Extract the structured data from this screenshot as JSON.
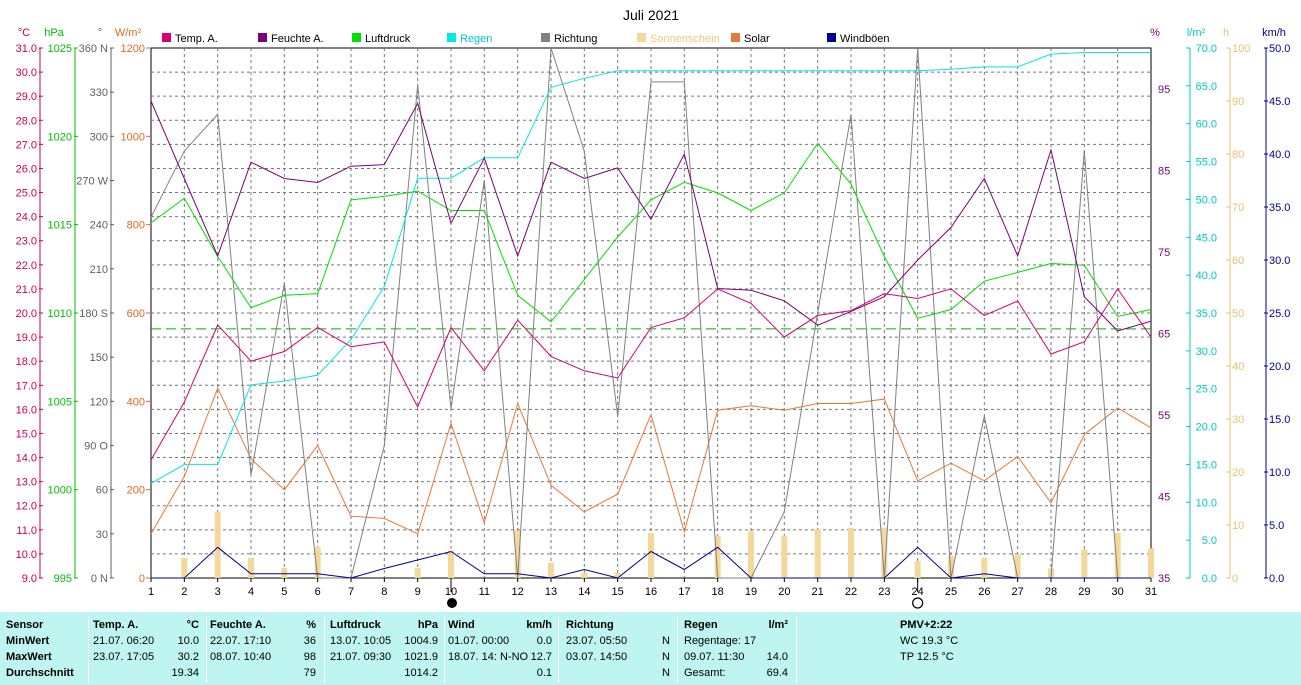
{
  "chart_data": {
    "type": "line",
    "title": "Juli 2021",
    "x": [
      1,
      2,
      3,
      4,
      5,
      6,
      7,
      8,
      9,
      10,
      11,
      12,
      13,
      14,
      15,
      16,
      17,
      18,
      19,
      20,
      21,
      22,
      23,
      24,
      25,
      26,
      27,
      28,
      29,
      30,
      31
    ],
    "axes": {
      "temp": {
        "unit": "°C",
        "min": 9,
        "max": 31,
        "ticks": [
          "31.0",
          "30.0",
          "29.0",
          "28.0",
          "27.0",
          "26.0",
          "25.0",
          "24.0",
          "23.0",
          "22.0",
          "21.0",
          "20.0",
          "19.0",
          "18.0",
          "17.0",
          "16.0",
          "15.0",
          "14.0",
          "13.0",
          "12.0",
          "11.0",
          "10.0",
          "9.0"
        ]
      },
      "pressure": {
        "unit": "hPa",
        "min": 995,
        "max": 1025,
        "ticks": [
          "1025",
          "1020",
          "1015",
          "1010",
          "1005",
          "1000",
          "995"
        ]
      },
      "direction": {
        "unit": "°",
        "min": 0,
        "max": 360,
        "ticks": [
          "360 N",
          "330",
          "300",
          "270 W",
          "240",
          "210",
          "180 S",
          "150",
          "120",
          "90 O",
          "60",
          "30",
          "0 N"
        ]
      },
      "solar": {
        "unit": "W/m²",
        "min": 0,
        "max": 1200,
        "ticks": [
          "1200",
          "1000",
          "800",
          "600",
          "400",
          "200",
          "0"
        ]
      },
      "humidity": {
        "unit": "%",
        "min": 35,
        "max": 100,
        "ticks": [
          "95",
          "85",
          "75",
          "65",
          "55",
          "45",
          "35"
        ]
      },
      "rain": {
        "unit": "l/m²",
        "min": 0,
        "max": 70,
        "ticks": [
          "70.0",
          "65.0",
          "60.0",
          "55.0",
          "50.0",
          "45.0",
          "40.0",
          "35.0",
          "30.0",
          "25.0",
          "20.0",
          "15.0",
          "10.0",
          "5.0",
          "0.0"
        ]
      },
      "sunshine": {
        "unit": "h",
        "min": 0,
        "max": 100,
        "ticks": [
          "100",
          "90",
          "80",
          "70",
          "60",
          "50",
          "40",
          "30",
          "20",
          "10",
          "0"
        ]
      },
      "wind": {
        "unit": "km/h",
        "min": 0,
        "max": 50,
        "ticks": [
          "50.0",
          "45.0",
          "40.0",
          "35.0",
          "30.0",
          "25.0",
          "20.0",
          "15.0",
          "10.0",
          "5.0",
          "0.0"
        ]
      }
    },
    "series": [
      {
        "name": "Temp. A.",
        "color": "#d6006f",
        "axis": "temp",
        "values": [
          13.9,
          16.3,
          19.5,
          18.0,
          18.4,
          19.4,
          18.6,
          18.8,
          16.1,
          19.4,
          17.6,
          19.7,
          18.2,
          17.6,
          17.3,
          19.4,
          19.8,
          21.0,
          20.4,
          19.0,
          19.9,
          20.1,
          20.8,
          20.6,
          21.0,
          19.9,
          20.5,
          18.3,
          18.8,
          21.0,
          19.0
        ]
      },
      {
        "name": "Feuchte A.",
        "color": "#7b007b",
        "axis": "humidity",
        "values": [
          93.5,
          84.0,
          74.5,
          86.0,
          84.0,
          83.5,
          85.5,
          85.7,
          93.2,
          78.5,
          86.5,
          74.5,
          86.0,
          84.0,
          85.3,
          79.0,
          87.0,
          70.5,
          70.3,
          69.0,
          66.0,
          67.7,
          69.5,
          74.0,
          78.0,
          84.0,
          74.5,
          87.5,
          69.5,
          65.3,
          66.5
        ]
      },
      {
        "name": "Luftdruck",
        "color": "#00e000",
        "axis": "pressure",
        "values": [
          1015.1,
          1016.5,
          1013.2,
          1010.3,
          1011.0,
          1011.1,
          1016.4,
          1016.6,
          1016.9,
          1015.8,
          1015.8,
          1011.0,
          1009.5,
          1011.9,
          1014.3,
          1016.4,
          1017.4,
          1016.8,
          1015.8,
          1016.8,
          1019.6,
          1017.3,
          1013.2,
          1009.7,
          1010.2,
          1011.8,
          1012.3,
          1012.8,
          1012.7,
          1009.8,
          1010.2
        ]
      },
      {
        "name": "Regen",
        "color": "#00e8e8",
        "axis": "rain",
        "values": [
          12.5,
          15.0,
          15.0,
          25.5,
          26.0,
          26.8,
          31.5,
          38.5,
          52.8,
          52.8,
          55.5,
          55.5,
          64.8,
          66.0,
          67.0,
          67.0,
          67.0,
          67.0,
          67.0,
          67.0,
          67.0,
          67.0,
          67.0,
          67.0,
          67.2,
          67.5,
          67.5,
          69.2,
          69.4,
          69.4,
          69.4
        ]
      },
      {
        "name": "Richtung",
        "color": "#808080",
        "axis": "direction",
        "values": [
          245,
          290,
          315,
          70,
          200,
          0,
          0,
          90,
          335,
          115,
          270,
          0,
          360,
          290,
          110,
          337,
          337,
          0,
          0,
          45,
          180,
          315,
          0,
          360,
          0,
          110,
          0,
          0,
          290,
          0,
          0
        ]
      },
      {
        "name": "Sonnenschein",
        "color": "#f5d79a",
        "axis": "sunshine",
        "values": [
          0,
          3.8,
          12.5,
          3.8,
          1.9,
          5.8,
          0,
          0,
          1.9,
          5.2,
          0,
          9.0,
          2.9,
          1.0,
          1.0,
          8.5,
          0,
          8.0,
          8.8,
          8.0,
          9.2,
          9.5,
          9.5,
          3.2,
          4.2,
          3.8,
          4.5,
          1.8,
          5.4,
          8.5,
          5.6
        ]
      },
      {
        "name": "Solar",
        "color": "#e87838",
        "axis": "solar",
        "values": [
          100,
          230,
          430,
          270,
          200,
          300,
          140,
          135,
          100,
          350,
          125,
          395,
          210,
          150,
          190,
          370,
          105,
          380,
          390,
          380,
          395,
          395,
          405,
          220,
          260,
          220,
          275,
          170,
          325,
          385,
          340
        ]
      },
      {
        "name": "Windböen",
        "color": "#00008b",
        "axis": "wind",
        "values": [
          0,
          0,
          2.9,
          0.4,
          0.4,
          0.4,
          0,
          0.9,
          1.7,
          2.5,
          0.4,
          0.4,
          0,
          0.8,
          0,
          2.5,
          0.8,
          2.9,
          0,
          0,
          0,
          0,
          0,
          2.9,
          0,
          0.4,
          0,
          0,
          0,
          0,
          0
        ]
      }
    ],
    "average_temp": 19.34,
    "moon_phases": [
      {
        "day": 10,
        "phase": "new"
      },
      {
        "day": 24,
        "phase": "full"
      }
    ]
  },
  "header_units": {
    "temp": "°C",
    "pressure": "hPa",
    "direction": "°",
    "solar": "W/m²",
    "humidity": "%",
    "rain": "l/m²",
    "sunshine": "h",
    "wind": "km/h"
  },
  "stats": {
    "sensor": {
      "title": "Sensor",
      "min": "MinWert",
      "max": "MaxWert",
      "avg": "Durchschnitt"
    },
    "temp": {
      "title": "Temp. A.",
      "unit": "°C",
      "min_date": "21.07.  06:20",
      "min_val": "10.0",
      "max_date": "23.07.  17:05",
      "max_val": "30.2",
      "avg": "19.34"
    },
    "humidity": {
      "title": "Feuchte A.",
      "unit": "%",
      "min_date": "22.07.  17:10",
      "min_val": "36",
      "max_date": "08.07.  10:40",
      "max_val": "98",
      "avg": "79"
    },
    "pressure": {
      "title": "Luftdruck",
      "unit": "hPa",
      "min_date": "13.07.  10:05",
      "min_val": "1004.9",
      "max_date": "21.07.  09:30",
      "max_val": "1021.9",
      "avg": "1014.2"
    },
    "wind": {
      "title": "Wind",
      "unit": "km/h",
      "min_date": "01.07.  00:00",
      "min_val": "0.0",
      "max_date": "18.07.  14: N-NO",
      "max_val": "12.7",
      "avg": "0.1"
    },
    "direction": {
      "title": "Richtung",
      "min_date": "23.07.  05:50",
      "min_val": "N",
      "max_date": "03.07.  14:50",
      "max_val": "N",
      "avg": "N"
    },
    "rain": {
      "title": "Regen",
      "unit": "l/m²",
      "days_label": "Regentage: 17",
      "max_date": "09.07.  11:30",
      "max_val": "14.0",
      "total_label": "Gesamt:",
      "total_val": "69.4"
    },
    "pmv": {
      "title": "PMV+2:22",
      "wc": "WC 19.3 °C",
      "tp": "TP 12.5 °C"
    }
  }
}
